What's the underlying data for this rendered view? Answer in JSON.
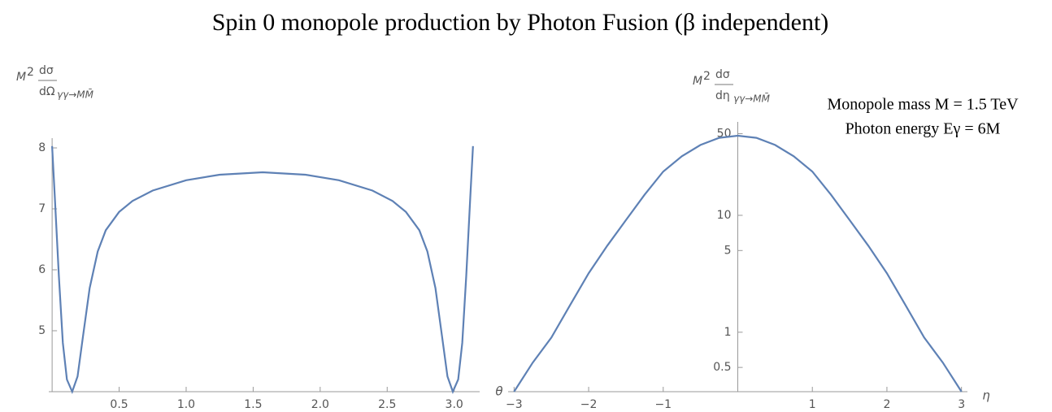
{
  "title": "Spin 0 monopole production by Photon Fusion (β independent)",
  "chart_data": [
    {
      "type": "line",
      "x_label": "θ",
      "y_label": {
        "base": "M",
        "exponent": "2",
        "numerator": "dσ",
        "denominator": "dΩ",
        "subscript": "γγ→MM̄"
      },
      "x": [
        0,
        0.02,
        0.05,
        0.08,
        0.11,
        0.15,
        0.19,
        0.23,
        0.28,
        0.34,
        0.4,
        0.5,
        0.6,
        0.75,
        1.0,
        1.25,
        1.571,
        1.89,
        2.14,
        2.39,
        2.54,
        2.64,
        2.74,
        2.8,
        2.86,
        2.91,
        2.95,
        2.99,
        3.03,
        3.06,
        3.09,
        3.12,
        3.14
      ],
      "values": [
        8.03,
        7.2,
        5.9,
        4.8,
        4.2,
        4.0,
        4.25,
        4.9,
        5.7,
        6.3,
        6.65,
        6.95,
        7.13,
        7.3,
        7.47,
        7.56,
        7.6,
        7.56,
        7.47,
        7.3,
        7.13,
        6.95,
        6.65,
        6.3,
        5.7,
        4.9,
        4.25,
        4.0,
        4.2,
        4.8,
        5.9,
        7.2,
        8.03
      ],
      "color": "#5e81b5",
      "xlim": [
        -0.025,
        3.19
      ],
      "ylim": [
        4,
        8.16
      ],
      "xticks": [
        0.5,
        {
          "value": 1,
          "label": "1.0"
        },
        1.5,
        {
          "value": 2,
          "label": "2.0"
        },
        2.5,
        {
          "value": 3,
          "label": "3.0"
        }
      ],
      "yticks": [
        5,
        6,
        7,
        8
      ],
      "log_y": false
    },
    {
      "type": "line",
      "x_label": "η",
      "y_label": {
        "base": "M",
        "exponent": "2",
        "numerator": "dσ",
        "denominator": "dη",
        "subscript": "γγ→MM̄"
      },
      "annotations": [
        "Monopole mass M = 1.5 TeV",
        "Photon energy Eγ = 6M"
      ],
      "x": [
        -3,
        -2.75,
        -2.5,
        -2.25,
        -2,
        -1.75,
        -1.5,
        -1.25,
        -1,
        -0.75,
        -0.5,
        -0.25,
        0,
        0.25,
        0.5,
        0.75,
        1,
        1.25,
        1.5,
        1.75,
        2,
        2.25,
        2.5,
        2.75,
        3
      ],
      "values": [
        0.31,
        0.55,
        0.9,
        1.7,
        3.2,
        5.5,
        9.1,
        15,
        23.7,
        32,
        40,
        46,
        48,
        46,
        40,
        32,
        23.7,
        15,
        9.1,
        5.5,
        3.2,
        1.7,
        0.9,
        0.55,
        0.31
      ],
      "color": "#5e81b5",
      "xlim": [
        -3.08,
        3.08
      ],
      "ylim": [
        0.31,
        63
      ],
      "xticks": [
        {
          "value": -3,
          "label": "−3"
        },
        {
          "value": -2,
          "label": "−2"
        },
        {
          "value": -1,
          "label": "−1"
        },
        1,
        2,
        3
      ],
      "yticks": [
        0.5,
        1,
        5,
        10,
        50
      ],
      "log_y": true
    }
  ]
}
